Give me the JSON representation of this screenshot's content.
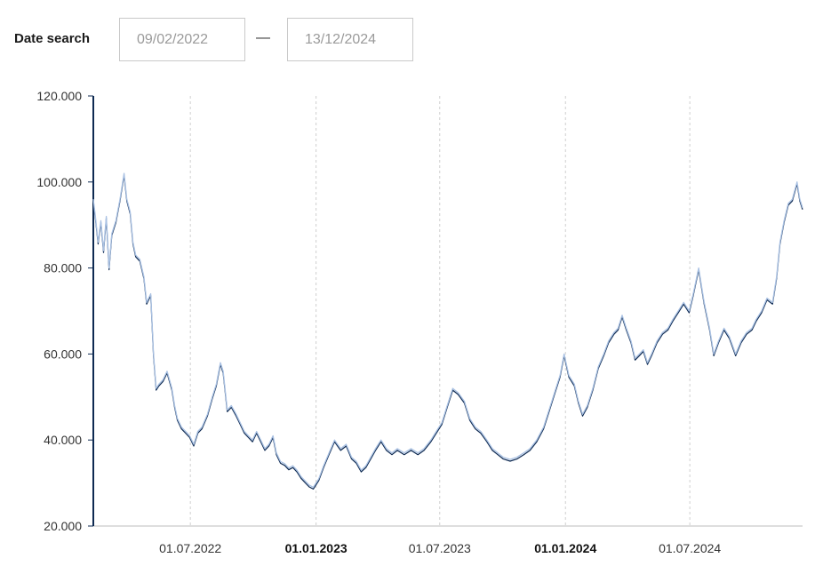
{
  "date_search": {
    "label": "Date search",
    "from": "09/02/2022",
    "separator": "—",
    "to": "13/12/2024"
  },
  "chart_data": {
    "type": "line",
    "title": "",
    "xlabel": "",
    "ylabel": "",
    "xlim": [
      "2022-02-09",
      "2024-12-13"
    ],
    "ylim": [
      20000,
      120000
    ],
    "y_ticks": [
      20000,
      40000,
      60000,
      80000,
      100000,
      120000
    ],
    "y_tick_labels": [
      "20.000",
      "40.000",
      "60.000",
      "80.000",
      "100.000",
      "120.000"
    ],
    "x_ticks": [
      "2022-07-01",
      "2023-01-01",
      "2023-07-01",
      "2024-01-01",
      "2024-07-01"
    ],
    "x_tick_labels": [
      "01.07.2022",
      "01.01.2023",
      "01.07.2023",
      "01.01.2024",
      "01.07.2024"
    ],
    "x_tick_bold": [
      false,
      true,
      false,
      true,
      false
    ],
    "grid": "vertical dashed",
    "colors": {
      "high": "#a9c1e3",
      "low": "#0e2a52",
      "axis": "#0e2a52"
    },
    "series": [
      {
        "values": [
          [
            "2022-02-09",
            96000
          ],
          [
            "2022-02-12",
            92000
          ],
          [
            "2022-02-16",
            86000
          ],
          [
            "2022-02-20",
            91000
          ],
          [
            "2022-02-24",
            84000
          ],
          [
            "2022-02-28",
            92000
          ],
          [
            "2022-03-04",
            80000
          ],
          [
            "2022-03-08",
            88000
          ],
          [
            "2022-03-14",
            91000
          ],
          [
            "2022-03-20",
            96000
          ],
          [
            "2022-03-26",
            102000
          ],
          [
            "2022-03-30",
            96000
          ],
          [
            "2022-04-04",
            93000
          ],
          [
            "2022-04-08",
            86000
          ],
          [
            "2022-04-12",
            83000
          ],
          [
            "2022-04-18",
            82000
          ],
          [
            "2022-04-24",
            78000
          ],
          [
            "2022-04-28",
            72000
          ],
          [
            "2022-05-04",
            74000
          ],
          [
            "2022-05-08",
            60000
          ],
          [
            "2022-05-12",
            52000
          ],
          [
            "2022-05-16",
            53000
          ],
          [
            "2022-05-22",
            54000
          ],
          [
            "2022-05-28",
            56000
          ],
          [
            "2022-06-04",
            52000
          ],
          [
            "2022-06-08",
            48000
          ],
          [
            "2022-06-12",
            45000
          ],
          [
            "2022-06-18",
            43000
          ],
          [
            "2022-06-24",
            42000
          ],
          [
            "2022-06-30",
            41000
          ],
          [
            "2022-07-06",
            39000
          ],
          [
            "2022-07-12",
            42000
          ],
          [
            "2022-07-18",
            43000
          ],
          [
            "2022-07-26",
            46000
          ],
          [
            "2022-08-02",
            50000
          ],
          [
            "2022-08-08",
            53000
          ],
          [
            "2022-08-14",
            58000
          ],
          [
            "2022-08-18",
            56000
          ],
          [
            "2022-08-24",
            47000
          ],
          [
            "2022-08-30",
            48000
          ],
          [
            "2022-09-06",
            46000
          ],
          [
            "2022-09-12",
            44000
          ],
          [
            "2022-09-18",
            42000
          ],
          [
            "2022-09-24",
            41000
          ],
          [
            "2022-09-30",
            40000
          ],
          [
            "2022-10-06",
            42000
          ],
          [
            "2022-10-12",
            40000
          ],
          [
            "2022-10-18",
            38000
          ],
          [
            "2022-10-24",
            39000
          ],
          [
            "2022-10-30",
            41000
          ],
          [
            "2022-11-04",
            37000
          ],
          [
            "2022-11-10",
            35000
          ],
          [
            "2022-11-16",
            34500
          ],
          [
            "2022-11-22",
            33500
          ],
          [
            "2022-11-28",
            34000
          ],
          [
            "2022-12-04",
            33000
          ],
          [
            "2022-12-10",
            31500
          ],
          [
            "2022-12-16",
            30500
          ],
          [
            "2022-12-22",
            29500
          ],
          [
            "2022-12-28",
            29000
          ],
          [
            "2023-01-05",
            31000
          ],
          [
            "2023-01-12",
            34000
          ],
          [
            "2023-01-20",
            37000
          ],
          [
            "2023-01-28",
            40000
          ],
          [
            "2023-02-06",
            38000
          ],
          [
            "2023-02-14",
            39000
          ],
          [
            "2023-02-22",
            36000
          ],
          [
            "2023-03-01",
            35000
          ],
          [
            "2023-03-08",
            33000
          ],
          [
            "2023-03-15",
            34000
          ],
          [
            "2023-03-22",
            36000
          ],
          [
            "2023-03-29",
            38000
          ],
          [
            "2023-04-06",
            40000
          ],
          [
            "2023-04-14",
            38000
          ],
          [
            "2023-04-22",
            37000
          ],
          [
            "2023-04-30",
            38000
          ],
          [
            "2023-05-10",
            37000
          ],
          [
            "2023-05-20",
            38000
          ],
          [
            "2023-05-30",
            37000
          ],
          [
            "2023-06-08",
            38000
          ],
          [
            "2023-06-18",
            40000
          ],
          [
            "2023-06-26",
            42000
          ],
          [
            "2023-07-04",
            44000
          ],
          [
            "2023-07-12",
            48000
          ],
          [
            "2023-07-20",
            52000
          ],
          [
            "2023-07-28",
            51000
          ],
          [
            "2023-08-06",
            49000
          ],
          [
            "2023-08-14",
            45000
          ],
          [
            "2023-08-22",
            43000
          ],
          [
            "2023-08-30",
            42000
          ],
          [
            "2023-09-08",
            40000
          ],
          [
            "2023-09-16",
            38000
          ],
          [
            "2023-09-24",
            37000
          ],
          [
            "2023-10-02",
            36000
          ],
          [
            "2023-10-12",
            35500
          ],
          [
            "2023-10-22",
            36000
          ],
          [
            "2023-11-01",
            37000
          ],
          [
            "2023-11-10",
            38000
          ],
          [
            "2023-11-20",
            40000
          ],
          [
            "2023-11-30",
            43000
          ],
          [
            "2023-12-08",
            47000
          ],
          [
            "2023-12-16",
            51000
          ],
          [
            "2023-12-24",
            55000
          ],
          [
            "2023-12-30",
            60000
          ],
          [
            "2024-01-06",
            55000
          ],
          [
            "2024-01-14",
            53000
          ],
          [
            "2024-01-20",
            49000
          ],
          [
            "2024-01-26",
            46000
          ],
          [
            "2024-02-02",
            48000
          ],
          [
            "2024-02-10",
            52000
          ],
          [
            "2024-02-18",
            57000
          ],
          [
            "2024-02-26",
            60000
          ],
          [
            "2024-03-04",
            63000
          ],
          [
            "2024-03-12",
            65000
          ],
          [
            "2024-03-18",
            66000
          ],
          [
            "2024-03-24",
            69000
          ],
          [
            "2024-03-30",
            66000
          ],
          [
            "2024-04-06",
            63000
          ],
          [
            "2024-04-12",
            59000
          ],
          [
            "2024-04-18",
            60000
          ],
          [
            "2024-04-24",
            61000
          ],
          [
            "2024-04-30",
            58000
          ],
          [
            "2024-05-06",
            60000
          ],
          [
            "2024-05-14",
            63000
          ],
          [
            "2024-05-22",
            65000
          ],
          [
            "2024-05-30",
            66000
          ],
          [
            "2024-06-06",
            68000
          ],
          [
            "2024-06-14",
            70000
          ],
          [
            "2024-06-22",
            72000
          ],
          [
            "2024-06-30",
            70000
          ],
          [
            "2024-07-06",
            74000
          ],
          [
            "2024-07-14",
            80000
          ],
          [
            "2024-07-22",
            72000
          ],
          [
            "2024-07-30",
            66000
          ],
          [
            "2024-08-05",
            60000
          ],
          [
            "2024-08-12",
            63000
          ],
          [
            "2024-08-20",
            66000
          ],
          [
            "2024-08-28",
            64000
          ],
          [
            "2024-09-06",
            60000
          ],
          [
            "2024-09-14",
            63000
          ],
          [
            "2024-09-22",
            65000
          ],
          [
            "2024-09-30",
            66000
          ],
          [
            "2024-10-06",
            68000
          ],
          [
            "2024-10-14",
            70000
          ],
          [
            "2024-10-22",
            73000
          ],
          [
            "2024-10-30",
            72000
          ],
          [
            "2024-11-05",
            78000
          ],
          [
            "2024-11-10",
            86000
          ],
          [
            "2024-11-16",
            91000
          ],
          [
            "2024-11-22",
            95000
          ],
          [
            "2024-11-28",
            96000
          ],
          [
            "2024-12-05",
            100000
          ],
          [
            "2024-12-09",
            96000
          ],
          [
            "2024-12-13",
            94000
          ]
        ]
      }
    ]
  }
}
